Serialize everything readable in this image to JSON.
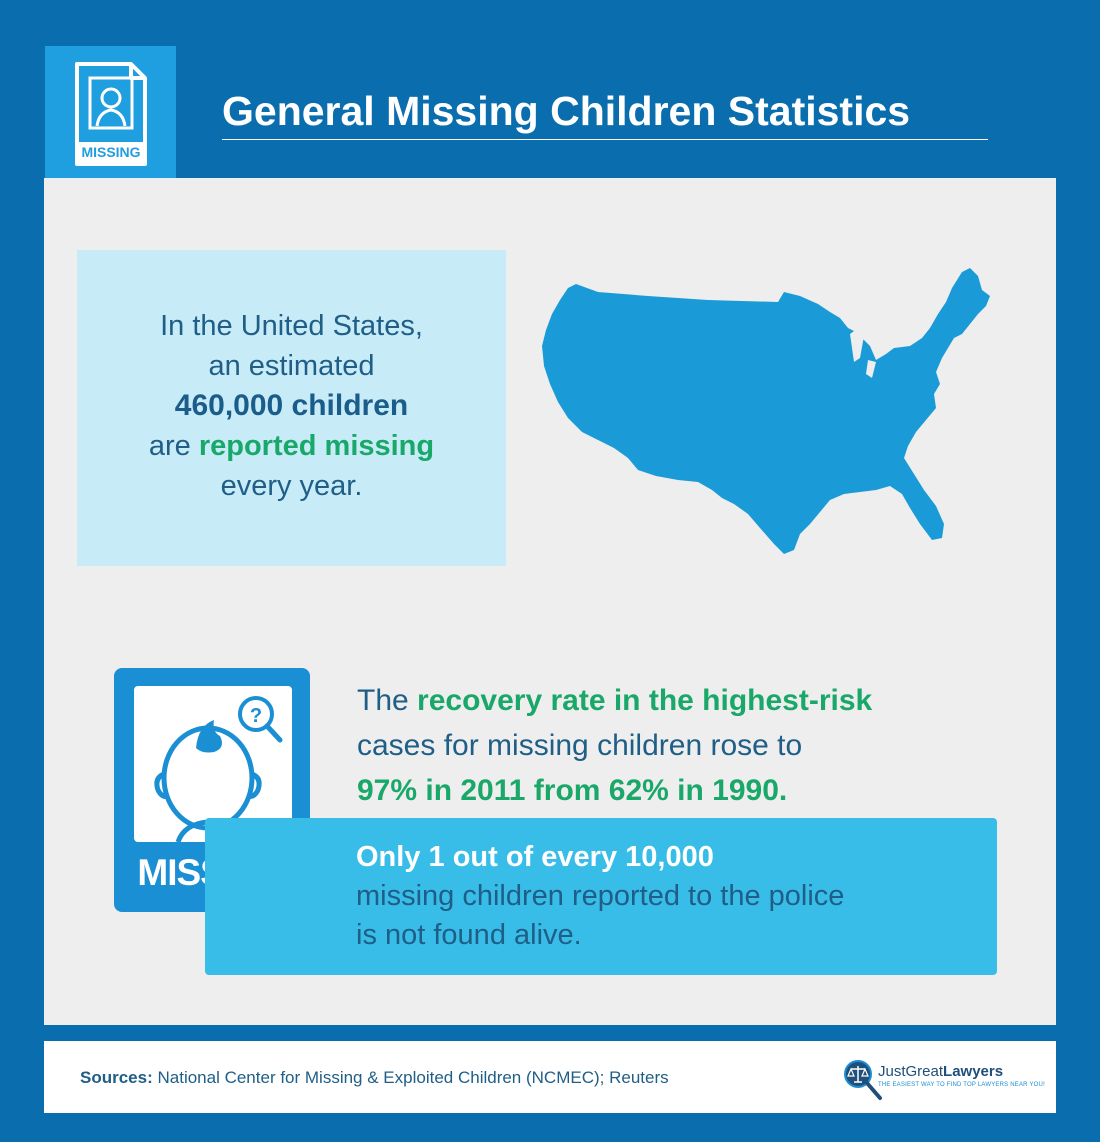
{
  "header": {
    "title": "General Missing Children Statistics",
    "icon_label": "MISSING",
    "icon": "missing-poster-icon"
  },
  "stat_us": {
    "line1": "In the United States,",
    "line2": "an estimated",
    "line3": "460,000 children",
    "line4_pre": "are ",
    "line4_em": "reported missing",
    "line5": "every year.",
    "map_icon": "us-map-icon"
  },
  "card": {
    "label": "MISSING",
    "icon": "missing-child-icon",
    "question_icon": "magnifier-question-icon"
  },
  "recovery": {
    "pre": "The ",
    "em1": "recovery rate in the highest-risk",
    "mid": "cases for missing children rose to",
    "em2": "97% in 2011 from 62% in 1990."
  },
  "found": {
    "em": "Only 1 out of every 10,000",
    "line2": "missing children reported to the police",
    "line3": "is not found alive."
  },
  "footer": {
    "sources_label": "Sources:",
    "sources_text": "National Center for Missing & Exploited Children (NCMEC); Reuters",
    "logo_name_1": "JustGreat",
    "logo_name_2": "Lawyers",
    "logo_tagline": "THE EASIEST WAY TO FIND TOP LAWYERS NEAR YOU!",
    "logo_icon": "scales-magnifier-icon"
  },
  "colors": {
    "frame": "#0a6eae",
    "accent_blue": "#1f9ee0",
    "map_blue": "#1a9bd7",
    "text_blue": "#1f5e86",
    "green": "#1aa86a",
    "light_box": "#c8ebf8",
    "cyan_box": "#38bde8"
  }
}
